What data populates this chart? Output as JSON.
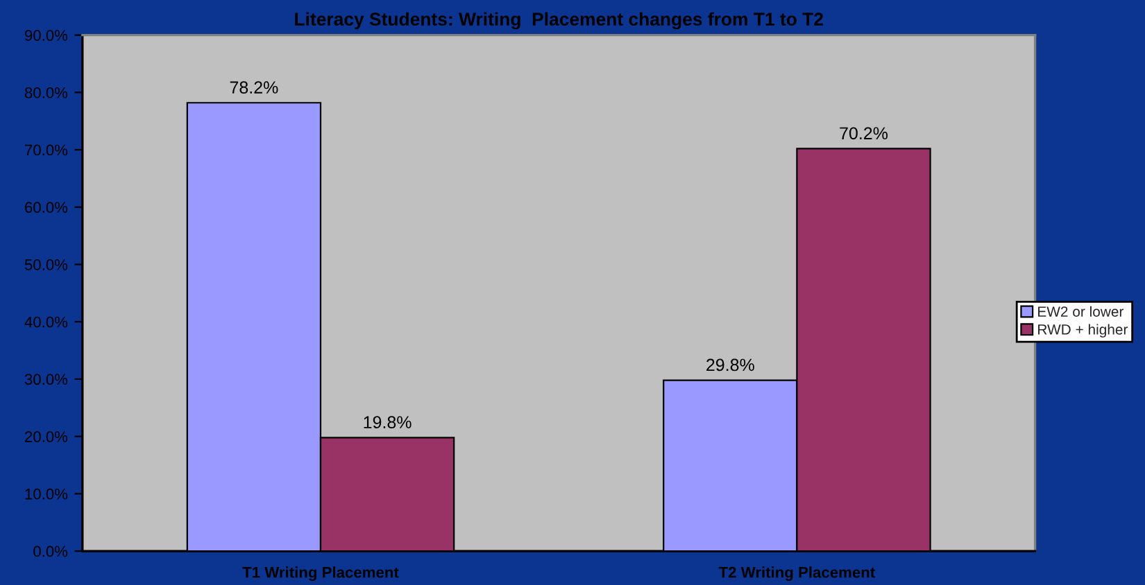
{
  "chart_data": {
    "type": "bar",
    "title": "Literacy Students: Writing  Placement changes from T1 to T2",
    "categories": [
      "T1 Writing Placement",
      "T2 Writing Placement"
    ],
    "series": [
      {
        "name": "EW2 or lower",
        "color": "#9999ff",
        "values": [
          78.2,
          29.8
        ],
        "value_labels": [
          "78.2%",
          "29.8%"
        ]
      },
      {
        "name": "RWD + higher",
        "color": "#993366",
        "values": [
          19.8,
          70.2
        ],
        "value_labels": [
          "19.8%",
          "70.2%"
        ]
      }
    ],
    "ylim": [
      0,
      90
    ],
    "yticks": [
      {
        "value": 0,
        "label": "0.0%"
      },
      {
        "value": 10,
        "label": "10.0%"
      },
      {
        "value": 20,
        "label": "20.0%"
      },
      {
        "value": 30,
        "label": "30.0%"
      },
      {
        "value": 40,
        "label": "40.0%"
      },
      {
        "value": 50,
        "label": "50.0%"
      },
      {
        "value": 60,
        "label": "60.0%"
      },
      {
        "value": 70,
        "label": "70.0%"
      },
      {
        "value": 80,
        "label": "80.0%"
      },
      {
        "value": 90,
        "label": "90.0%"
      }
    ],
    "grid": false,
    "legend": "right"
  }
}
